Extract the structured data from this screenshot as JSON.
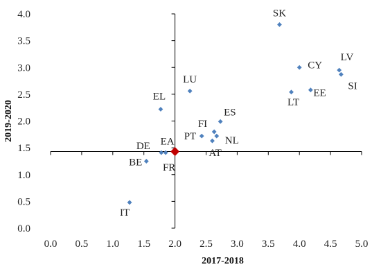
{
  "chart_data": {
    "type": "scatter",
    "title": "",
    "xlabel": "2017-2018",
    "ylabel": "2019-2020",
    "xlim": [
      0.0,
      5.0
    ],
    "ylim": [
      0.0,
      4.0
    ],
    "x_ticks": [
      "0.0",
      "0.5",
      "1.0",
      "1.5",
      "2.0",
      "2.5",
      "3.0",
      "3.5",
      "4.0",
      "4.5",
      "5.0"
    ],
    "y_ticks": [
      "0.0",
      "0.5",
      "1.0",
      "1.5",
      "2.0",
      "2.5",
      "3.0",
      "3.5",
      "4.0"
    ],
    "crosshair": {
      "x": 2.0,
      "y": 1.43
    },
    "grid": false,
    "legend": "none",
    "point_color": "#4F81BD",
    "highlight_color": "#C00000",
    "points": [
      {
        "label": "SK",
        "x": 3.68,
        "y": 3.8
      },
      {
        "label": "CY",
        "x": 4.0,
        "y": 3.0
      },
      {
        "label": "LV",
        "x": 4.64,
        "y": 2.95
      },
      {
        "label": "SI",
        "x": 4.67,
        "y": 2.87
      },
      {
        "label": "LT",
        "x": 3.87,
        "y": 2.54
      },
      {
        "label": "EE",
        "x": 4.18,
        "y": 2.58
      },
      {
        "label": "LU",
        "x": 2.24,
        "y": 2.56
      },
      {
        "label": "EL",
        "x": 1.77,
        "y": 2.22
      },
      {
        "label": "ES",
        "x": 2.73,
        "y": 1.99
      },
      {
        "label": "FI",
        "x": 2.63,
        "y": 1.8
      },
      {
        "label": "PT",
        "x": 2.43,
        "y": 1.72
      },
      {
        "label": "NL",
        "x": 2.67,
        "y": 1.72
      },
      {
        "label": "AT",
        "x": 2.6,
        "y": 1.63
      },
      {
        "label": "DE",
        "x": 1.78,
        "y": 1.41
      },
      {
        "label": "FR",
        "x": 1.85,
        "y": 1.41
      },
      {
        "label": "BE",
        "x": 1.54,
        "y": 1.25
      },
      {
        "label": "IT",
        "x": 1.27,
        "y": 0.48
      },
      {
        "label": "EA",
        "x": 2.0,
        "y": 1.43,
        "highlight": true
      }
    ]
  }
}
